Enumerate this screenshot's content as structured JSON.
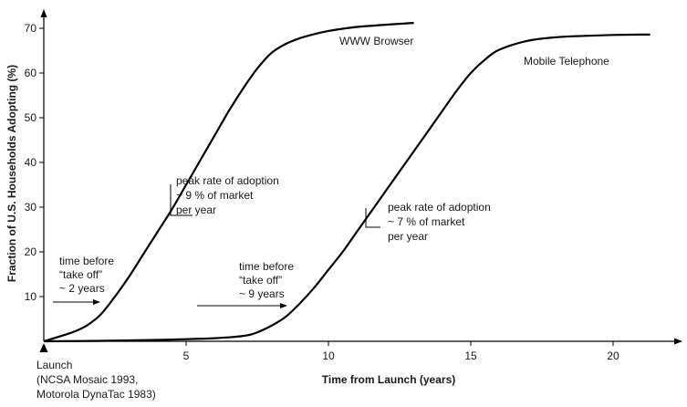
{
  "chart_data": {
    "type": "line",
    "title": "",
    "xlabel": "Time from Launch (years)",
    "ylabel": "Fraction of U.S. Households Adopting (%)",
    "xlim": [
      0,
      22.5
    ],
    "ylim": [
      0,
      72
    ],
    "x_ticks": [
      5,
      10,
      15,
      20
    ],
    "y_ticks": [
      10,
      20,
      30,
      40,
      50,
      60,
      70
    ],
    "grid": false,
    "series": [
      {
        "name": "WWW Browser",
        "x": [
          0,
          1,
          1.5,
          2,
          2.5,
          3,
          3.5,
          4,
          4.5,
          5,
          5.5,
          6,
          6.5,
          7,
          7.5,
          8,
          8.5,
          9,
          9.5,
          10,
          10.5,
          11,
          12,
          13
        ],
        "y": [
          0,
          2,
          3.5,
          6,
          10,
          14.5,
          19.5,
          24.5,
          29.5,
          35,
          40.5,
          46,
          51.5,
          56.5,
          61,
          64.5,
          66.5,
          67.8,
          68.7,
          69.4,
          69.9,
          70.3,
          70.8,
          71.2
        ]
      },
      {
        "name": "Mobile Telephone",
        "x": [
          0,
          2,
          4,
          6,
          7,
          7.5,
          8,
          8.5,
          9,
          9.5,
          10,
          10.5,
          11,
          11.5,
          12,
          12.5,
          13,
          13.5,
          14,
          14.5,
          15,
          15.5,
          16,
          17,
          18,
          19,
          20,
          21,
          21.3
        ],
        "y": [
          0,
          0.1,
          0.3,
          0.7,
          1.2,
          2,
          3.5,
          5.5,
          8.5,
          12,
          16,
          20,
          24.5,
          29,
          33.5,
          38,
          42.5,
          47,
          51.5,
          56,
          60,
          63,
          65.2,
          67.2,
          68,
          68.3,
          68.5,
          68.6,
          68.6
        ]
      }
    ],
    "annotations": {
      "launch": [
        "Launch",
        "(NCSA Mosaic 1993,",
        "Motorola DynaTac 1983)"
      ],
      "www_takeoff": [
        "time before",
        "“take off”",
        "~ 2 years"
      ],
      "mobile_takeoff": [
        "time before",
        "“take off”",
        "~ 9 years"
      ],
      "www_peak": [
        "peak rate of adoption",
        "~ 9 % of market",
        "per year"
      ],
      "mobile_peak": [
        "peak rate of adoption",
        "~ 7 % of market",
        "per year"
      ]
    }
  }
}
